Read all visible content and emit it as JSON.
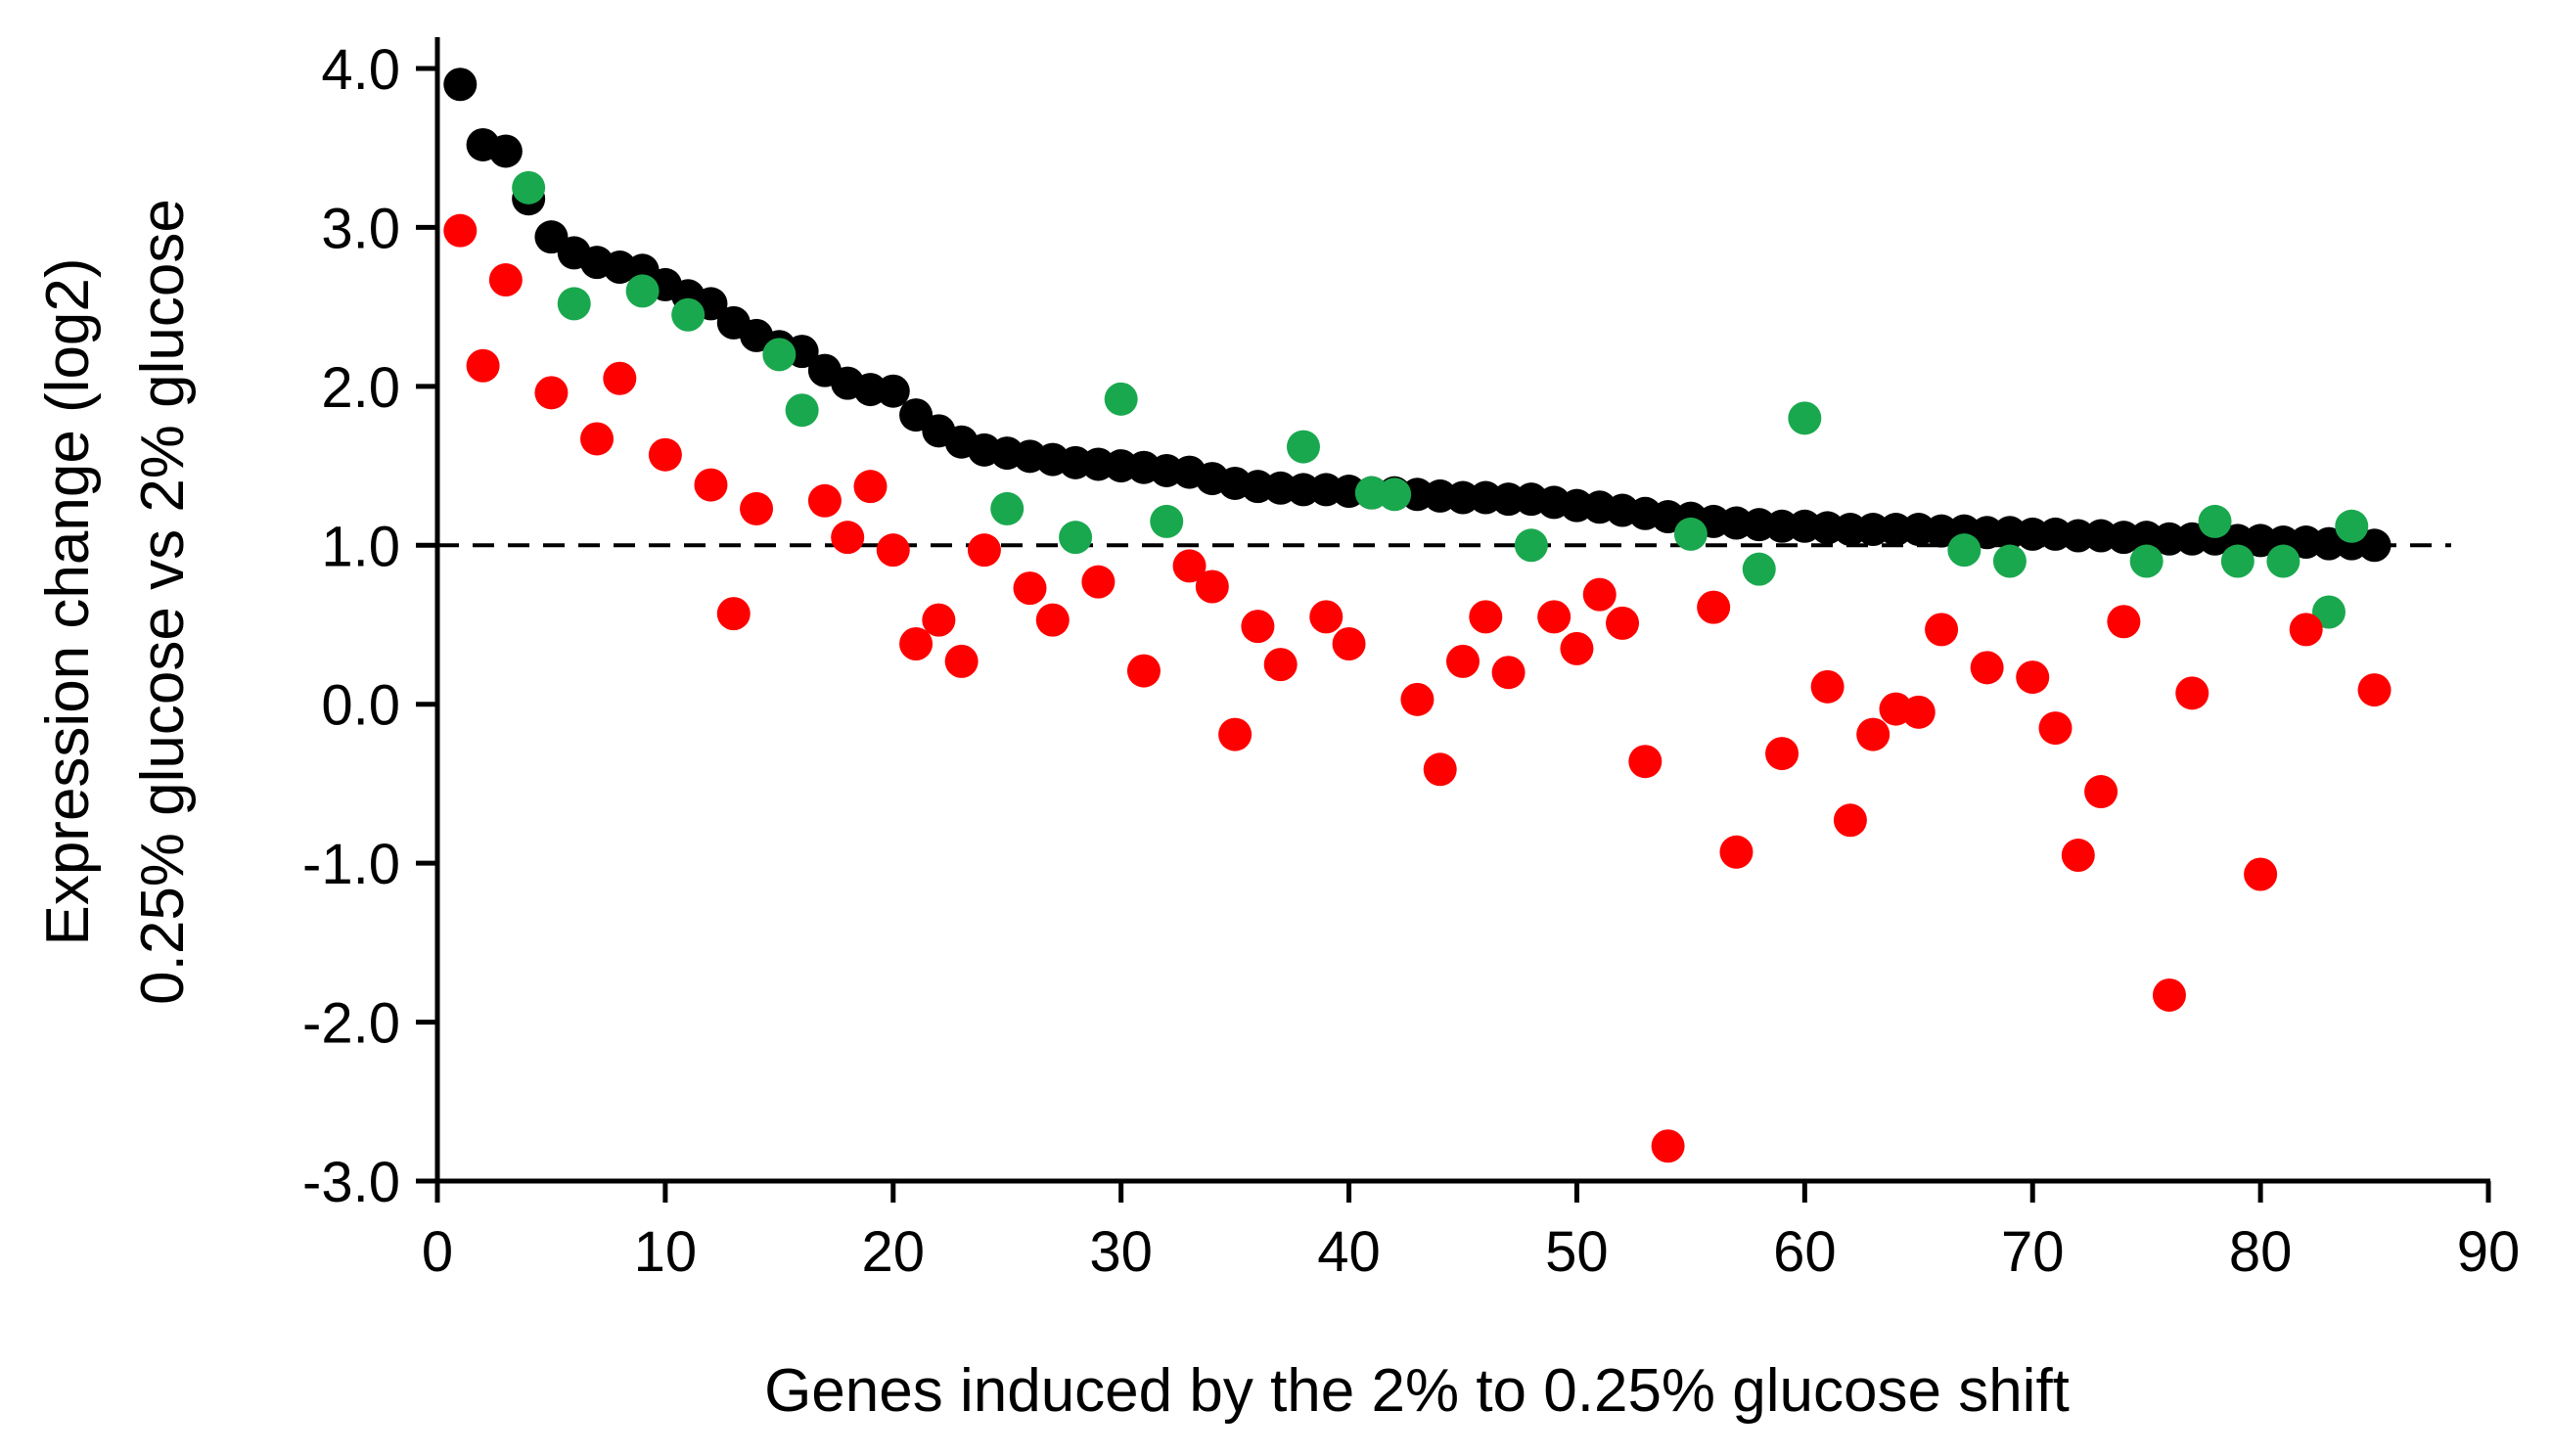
{
  "chart_data": {
    "type": "scatter",
    "title": "",
    "xlabel": "Genes induced by the 2% to 0.25% glucose shift",
    "ylabel_lines": [
      "Expression change (log2)",
      "0.25% glucose vs 2% glucose"
    ],
    "xlim": [
      0,
      90
    ],
    "ylim": [
      -3.0,
      4.0
    ],
    "x_ticks": [
      0,
      10,
      20,
      30,
      40,
      50,
      60,
      70,
      80,
      90
    ],
    "x_tick_labels": [
      "0",
      "10",
      "20",
      "30",
      "40",
      "50",
      "60",
      "70",
      "80",
      "90"
    ],
    "y_ticks": [
      -3,
      -2,
      -1,
      0,
      1,
      2,
      3,
      4
    ],
    "y_tick_labels": [
      "-3.0",
      "-2.0",
      "-1.0",
      "0.0",
      "1.0",
      "2.0",
      "3.0",
      "4.0"
    ],
    "reference_line": {
      "y": 1.0,
      "style": "dashed"
    },
    "grid": false,
    "series": [
      {
        "name": "black",
        "color": "#000000",
        "points": [
          [
            1,
            3.9
          ],
          [
            2,
            3.52
          ],
          [
            3,
            3.48
          ],
          [
            4,
            3.18
          ],
          [
            5,
            2.94
          ],
          [
            6,
            2.84
          ],
          [
            7,
            2.78
          ],
          [
            8,
            2.75
          ],
          [
            9,
            2.73
          ],
          [
            10,
            2.64
          ],
          [
            11,
            2.57
          ],
          [
            12,
            2.52
          ],
          [
            13,
            2.4
          ],
          [
            14,
            2.32
          ],
          [
            15,
            2.25
          ],
          [
            16,
            2.22
          ],
          [
            17,
            2.1
          ],
          [
            18,
            2.02
          ],
          [
            19,
            1.98
          ],
          [
            20,
            1.97
          ],
          [
            21,
            1.82
          ],
          [
            22,
            1.72
          ],
          [
            23,
            1.65
          ],
          [
            24,
            1.6
          ],
          [
            25,
            1.58
          ],
          [
            26,
            1.56
          ],
          [
            27,
            1.54
          ],
          [
            28,
            1.52
          ],
          [
            29,
            1.51
          ],
          [
            30,
            1.5
          ],
          [
            31,
            1.49
          ],
          [
            32,
            1.47
          ],
          [
            33,
            1.46
          ],
          [
            34,
            1.42
          ],
          [
            35,
            1.39
          ],
          [
            36,
            1.37
          ],
          [
            37,
            1.36
          ],
          [
            38,
            1.35
          ],
          [
            39,
            1.35
          ],
          [
            40,
            1.34
          ],
          [
            41,
            1.33
          ],
          [
            42,
            1.33
          ],
          [
            43,
            1.32
          ],
          [
            44,
            1.31
          ],
          [
            45,
            1.3
          ],
          [
            46,
            1.3
          ],
          [
            47,
            1.29
          ],
          [
            48,
            1.29
          ],
          [
            49,
            1.27
          ],
          [
            50,
            1.25
          ],
          [
            51,
            1.24
          ],
          [
            52,
            1.22
          ],
          [
            53,
            1.2
          ],
          [
            54,
            1.18
          ],
          [
            55,
            1.17
          ],
          [
            56,
            1.15
          ],
          [
            57,
            1.14
          ],
          [
            58,
            1.13
          ],
          [
            59,
            1.12
          ],
          [
            60,
            1.12
          ],
          [
            61,
            1.11
          ],
          [
            62,
            1.1
          ],
          [
            63,
            1.1
          ],
          [
            64,
            1.1
          ],
          [
            65,
            1.1
          ],
          [
            66,
            1.09
          ],
          [
            67,
            1.09
          ],
          [
            68,
            1.08
          ],
          [
            69,
            1.08
          ],
          [
            70,
            1.07
          ],
          [
            71,
            1.07
          ],
          [
            72,
            1.06
          ],
          [
            73,
            1.06
          ],
          [
            74,
            1.05
          ],
          [
            75,
            1.05
          ],
          [
            76,
            1.04
          ],
          [
            77,
            1.04
          ],
          [
            78,
            1.04
          ],
          [
            79,
            1.03
          ],
          [
            80,
            1.03
          ],
          [
            81,
            1.02
          ],
          [
            82,
            1.02
          ],
          [
            83,
            1.01
          ],
          [
            84,
            1.01
          ],
          [
            85,
            1.0
          ]
        ]
      },
      {
        "name": "green",
        "color": "#1aa84f",
        "points": [
          [
            4,
            3.25
          ],
          [
            6,
            2.52
          ],
          [
            9,
            2.6
          ],
          [
            11,
            2.45
          ],
          [
            15,
            2.2
          ],
          [
            16,
            1.85
          ],
          [
            25,
            1.23
          ],
          [
            28,
            1.05
          ],
          [
            30,
            1.92
          ],
          [
            32,
            1.15
          ],
          [
            38,
            1.62
          ],
          [
            41,
            1.33
          ],
          [
            42,
            1.32
          ],
          [
            48,
            1.0
          ],
          [
            55,
            1.07
          ],
          [
            58,
            0.85
          ],
          [
            60,
            1.8
          ],
          [
            67,
            0.97
          ],
          [
            69,
            0.9
          ],
          [
            75,
            0.9
          ],
          [
            78,
            1.15
          ],
          [
            79,
            0.9
          ],
          [
            81,
            0.9
          ],
          [
            83,
            0.58
          ],
          [
            84,
            1.12
          ]
        ]
      },
      {
        "name": "red",
        "color": "#ff0000",
        "points": [
          [
            1,
            2.98
          ],
          [
            2,
            2.13
          ],
          [
            3,
            2.67
          ],
          [
            5,
            1.96
          ],
          [
            7,
            1.67
          ],
          [
            8,
            2.05
          ],
          [
            10,
            1.57
          ],
          [
            12,
            1.38
          ],
          [
            13,
            0.57
          ],
          [
            14,
            1.23
          ],
          [
            17,
            1.28
          ],
          [
            18,
            1.05
          ],
          [
            19,
            1.37
          ],
          [
            20,
            0.97
          ],
          [
            21,
            0.38
          ],
          [
            22,
            0.53
          ],
          [
            23,
            0.27
          ],
          [
            24,
            0.97
          ],
          [
            26,
            0.73
          ],
          [
            27,
            0.53
          ],
          [
            29,
            0.77
          ],
          [
            31,
            0.21
          ],
          [
            33,
            0.87
          ],
          [
            34,
            0.74
          ],
          [
            35,
            -0.19
          ],
          [
            36,
            0.49
          ],
          [
            37,
            0.25
          ],
          [
            39,
            0.55
          ],
          [
            40,
            0.38
          ],
          [
            43,
            0.03
          ],
          [
            44,
            -0.41
          ],
          [
            45,
            0.27
          ],
          [
            46,
            0.55
          ],
          [
            47,
            0.2
          ],
          [
            49,
            0.55
          ],
          [
            50,
            0.35
          ],
          [
            51,
            0.69
          ],
          [
            52,
            0.51
          ],
          [
            53,
            -0.36
          ],
          [
            54,
            -2.78
          ],
          [
            56,
            0.61
          ],
          [
            57,
            -0.93
          ],
          [
            59,
            -0.31
          ],
          [
            61,
            0.11
          ],
          [
            62,
            -0.73
          ],
          [
            63,
            -0.19
          ],
          [
            64,
            -0.03
          ],
          [
            65,
            -0.05
          ],
          [
            66,
            0.47
          ],
          [
            68,
            0.23
          ],
          [
            70,
            0.17
          ],
          [
            71,
            -0.15
          ],
          [
            72,
            -0.95
          ],
          [
            73,
            -0.55
          ],
          [
            74,
            0.52
          ],
          [
            76,
            -1.83
          ],
          [
            77,
            0.07
          ],
          [
            80,
            -1.07
          ],
          [
            82,
            0.47
          ],
          [
            85,
            0.09
          ]
        ]
      }
    ]
  }
}
